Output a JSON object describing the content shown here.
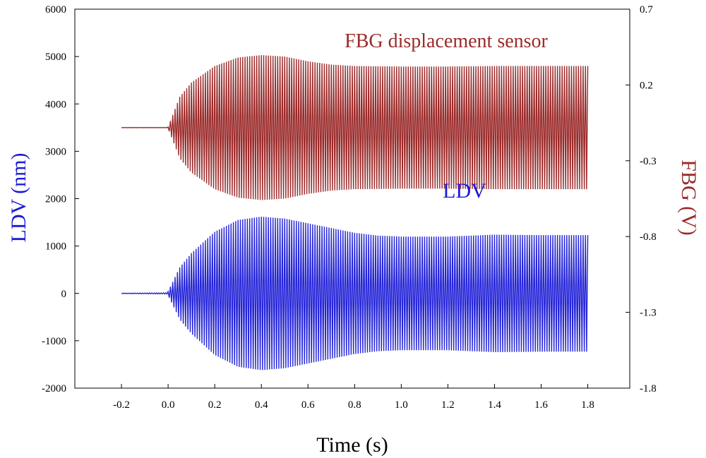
{
  "chart_data": {
    "type": "line",
    "title": "",
    "xlabel": "Time (s)",
    "ylabel_left": "LDV (nm)",
    "ylabel_right": "FBG (V)",
    "xlim": [
      -0.4,
      1.98
    ],
    "ylim_left": [
      -2000,
      6000
    ],
    "ylim_right": [
      -1.8,
      0.7
    ],
    "x_ticks": [
      "-0.2",
      "0.0",
      "0.2",
      "0.4",
      "0.6",
      "0.8",
      "1.0",
      "1.2",
      "1.4",
      "1.6",
      "1.8"
    ],
    "x_tick_values": [
      -0.2,
      0.0,
      0.2,
      0.4,
      0.6,
      0.8,
      1.0,
      1.2,
      1.4,
      1.6,
      1.8
    ],
    "y_left_ticks": [
      "6000",
      "5000",
      "4000",
      "3000",
      "2000",
      "1000",
      "0",
      "-1000",
      "-2000"
    ],
    "y_left_tick_values": [
      6000,
      5000,
      4000,
      3000,
      2000,
      1000,
      0,
      -1000,
      -2000
    ],
    "y_right_ticks": [
      "0.7",
      "0.2",
      "-0.3",
      "-0.8",
      "-1.3",
      "-1.8"
    ],
    "y_right_tick_values": [
      0.7,
      0.2,
      -0.3,
      -0.8,
      -1.3,
      -1.8
    ],
    "grid": false,
    "annotations": [
      "FBG displacement sensor",
      "LDV"
    ],
    "series": [
      {
        "name": "FBG displacement sensor",
        "axis": "left",
        "color": "#9b2a2a",
        "baseline": 3500,
        "envelope_t": [
          -0.2,
          0.0,
          0.05,
          0.1,
          0.2,
          0.3,
          0.4,
          0.5,
          0.6,
          0.7,
          0.8,
          1.0,
          1.2,
          1.4,
          1.6,
          1.8
        ],
        "envelope_amp": [
          15,
          15,
          650,
          950,
          1300,
          1480,
          1530,
          1500,
          1400,
          1330,
          1300,
          1290,
          1290,
          1300,
          1300,
          1300
        ]
      },
      {
        "name": "LDV",
        "axis": "left",
        "color": "#2424d8",
        "baseline": 0,
        "envelope_t": [
          -0.2,
          0.0,
          0.05,
          0.1,
          0.2,
          0.3,
          0.4,
          0.5,
          0.6,
          0.7,
          0.8,
          0.9,
          1.0,
          1.2,
          1.4,
          1.6,
          1.8
        ],
        "envelope_amp": [
          15,
          40,
          550,
          850,
          1300,
          1550,
          1620,
          1580,
          1480,
          1380,
          1280,
          1220,
          1200,
          1200,
          1240,
          1230,
          1230
        ]
      }
    ]
  }
}
